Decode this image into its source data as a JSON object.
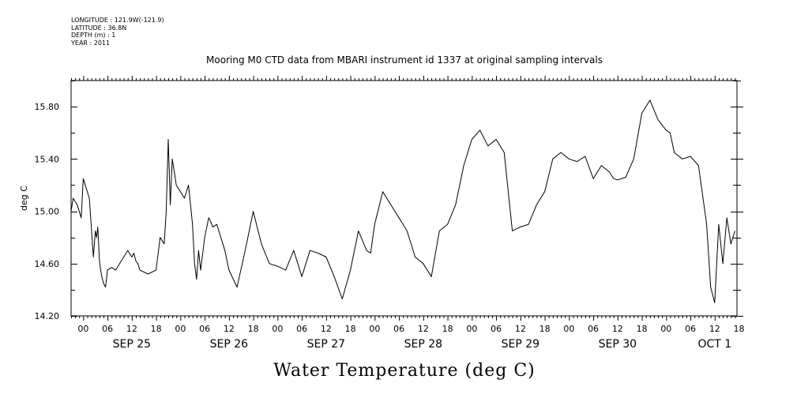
{
  "header": {
    "longitude": "LONGITUDE : 121.9W(-121.9)",
    "latitude": "LATITUDE : 36.8N",
    "depth": "DEPTH (m) : 1",
    "year": "YEAR : 2011"
  },
  "chart_data": {
    "type": "line",
    "title": "Mooring M0 CTD data from MBARI instrument id 1337 at original sampling intervals",
    "xlabel": "Water Temperature (deg C)",
    "ylabel": "deg C",
    "ylim": [
      14.2,
      16.0
    ],
    "y_ticks": [
      "14.20",
      "14.60",
      "15.00",
      "15.40",
      "15.80"
    ],
    "hour_ticks": [
      "00",
      "06",
      "12",
      "18",
      "00",
      "06",
      "12",
      "18",
      "00",
      "06",
      "12",
      "18",
      "00",
      "06",
      "12",
      "18",
      "00",
      "06",
      "12",
      "18",
      "00",
      "06",
      "12",
      "18",
      "00",
      "06",
      "12",
      "18"
    ],
    "day_labels": [
      "SEP 25",
      "SEP 26",
      "SEP 27",
      "SEP 28",
      "SEP 29",
      "SEP 30",
      "OCT  1"
    ],
    "x_unit": "hours since 2011-09-25 00:00 (x-axis starts at SEP 24 21:00)",
    "xlim": [
      -3,
      161.5
    ],
    "series": [
      {
        "name": "Water Temperature",
        "x": [
          -3,
          -2.5,
          -1.5,
          -0.5,
          0,
          0.5,
          1.5,
          2.5,
          3,
          3.3,
          3.6,
          4,
          4.3,
          4.6,
          5,
          5.5,
          6,
          7,
          8,
          9,
          10,
          11,
          12,
          12.5,
          13,
          13.5,
          14,
          16,
          18,
          19,
          20,
          20.5,
          21,
          21.5,
          22,
          22.5,
          23,
          24,
          25,
          26,
          26.5,
          27,
          27.5,
          28,
          28.5,
          29,
          30,
          31,
          31.5,
          32,
          33,
          34,
          35,
          36,
          38,
          40,
          42,
          44,
          46,
          48,
          50,
          52,
          54,
          56,
          58,
          60,
          62,
          64,
          66,
          68,
          70,
          71,
          72,
          74,
          76,
          78,
          80,
          82,
          84,
          86,
          88,
          90,
          92,
          94,
          96,
          98,
          100,
          102,
          104,
          106,
          108,
          110,
          112,
          114,
          116,
          118,
          120,
          122,
          124,
          126,
          128,
          130,
          131,
          132,
          134,
          136,
          138,
          140,
          142,
          144,
          145,
          146,
          148,
          150,
          152,
          154,
          155,
          156,
          157,
          158,
          159,
          160,
          161
        ],
        "values": [
          15.0,
          15.1,
          15.05,
          14.95,
          15.25,
          15.2,
          15.1,
          14.65,
          14.85,
          14.8,
          14.88,
          14.62,
          14.55,
          14.5,
          14.45,
          14.42,
          14.55,
          14.57,
          14.55,
          14.6,
          14.65,
          14.7,
          14.65,
          14.68,
          14.62,
          14.6,
          14.55,
          14.52,
          14.55,
          14.8,
          14.75,
          15.0,
          15.55,
          15.05,
          15.4,
          15.3,
          15.2,
          15.15,
          15.1,
          15.2,
          15.05,
          14.9,
          14.6,
          14.48,
          14.7,
          14.55,
          14.8,
          14.95,
          14.92,
          14.88,
          14.9,
          14.8,
          14.7,
          14.55,
          14.42,
          14.7,
          15.0,
          14.75,
          14.6,
          14.58,
          14.55,
          14.7,
          14.5,
          14.7,
          14.68,
          14.65,
          14.5,
          14.33,
          14.55,
          14.85,
          14.7,
          14.68,
          14.9,
          15.15,
          15.05,
          14.95,
          14.85,
          14.65,
          14.6,
          14.5,
          14.85,
          14.9,
          15.05,
          15.35,
          15.55,
          15.62,
          15.5,
          15.55,
          15.45,
          14.85,
          14.88,
          14.9,
          15.05,
          15.15,
          15.4,
          15.45,
          15.4,
          15.38,
          15.42,
          15.25,
          15.35,
          15.3,
          15.25,
          15.24,
          15.26,
          15.4,
          15.75,
          15.85,
          15.7,
          15.62,
          15.6,
          15.45,
          15.4,
          15.42,
          15.35,
          14.9,
          14.42,
          14.3,
          14.9,
          14.6,
          14.95,
          14.75,
          14.85
        ]
      }
    ],
    "grid": false,
    "legend": "none"
  }
}
